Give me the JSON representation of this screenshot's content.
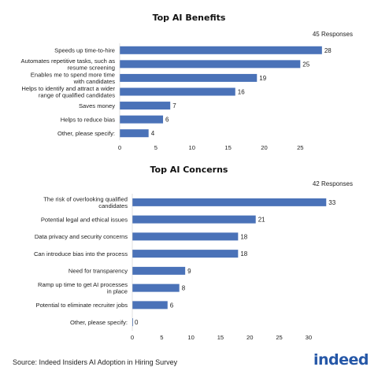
{
  "chart_data": [
    {
      "type": "bar",
      "orientation": "horizontal",
      "title": "Top AI Benefits",
      "responses_label": "45 Responses",
      "categories": [
        [
          "Speeds up time-to-hire"
        ],
        [
          "Automates repetitive tasks, such as",
          "resume screening"
        ],
        [
          "Enables me to spend more time",
          "with candidates"
        ],
        [
          "Helps to identify and attract a wider",
          "range of qualified candidates"
        ],
        [
          "Saves money"
        ],
        [
          "Helps to reduce bias"
        ],
        [
          "Other, please specify:"
        ]
      ],
      "values": [
        28,
        25,
        19,
        16,
        7,
        6,
        4
      ],
      "xticks": [
        0,
        5,
        10,
        15,
        20,
        25
      ],
      "xlim": [
        0,
        29
      ],
      "bar_color": "#4a72b8"
    },
    {
      "type": "bar",
      "orientation": "horizontal",
      "title": "Top AI Concerns",
      "responses_label": "42 Responses",
      "categories": [
        [
          "The risk of overlooking qualified",
          "candidates"
        ],
        [
          "Potential legal and ethical issues"
        ],
        [
          "Data privacy and security concerns"
        ],
        [
          "Can introduce bias into the process"
        ],
        [
          "Need for transparency"
        ],
        [
          "Ramp up time to get AI processes",
          "in place"
        ],
        [
          "Potential to eliminate recruiter jobs"
        ],
        [
          "Other, please specify:"
        ]
      ],
      "values": [
        33,
        21,
        18,
        18,
        9,
        8,
        6,
        0
      ],
      "xticks": [
        0,
        5,
        10,
        15,
        20,
        25,
        30
      ],
      "xlim": [
        0,
        33.5
      ],
      "bar_color": "#4a72b8"
    }
  ],
  "footer": {
    "source": "Source: Indeed Insiders AI Adoption in Hiring Survey",
    "logo": "indeed"
  }
}
